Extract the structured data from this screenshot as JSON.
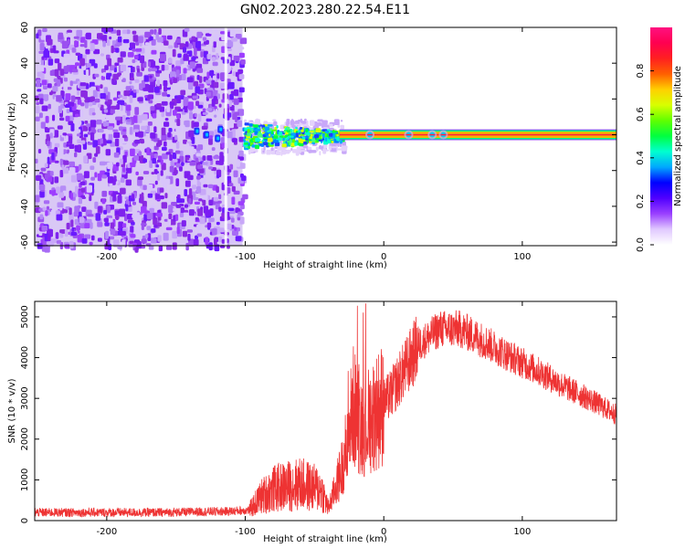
{
  "title": "GN02.2023.280.22.54.E11",
  "chart_data": [
    {
      "type": "heatmap",
      "xlabel": "Height of straight line (km)",
      "ylabel": "Frequency (Hz)",
      "xlim": [
        -252,
        168
      ],
      "ylim": [
        -62,
        60
      ],
      "xticks": [
        -200,
        -100,
        0,
        100
      ],
      "yticks": [
        60,
        40,
        20,
        0,
        -20,
        -40,
        -60
      ],
      "grid": false,
      "noise_region_x": [
        -252,
        -102
      ],
      "signal_band_hz": [
        -2,
        2
      ],
      "colorbar": {
        "label": "Normalized spectral amplitude",
        "range": [
          0,
          1
        ],
        "ticks": [
          "0.0",
          "0.2",
          "0.4",
          "0.6",
          "0.8"
        ],
        "colors": [
          "#ffffff",
          "#e0c8ff",
          "#9a40ff",
          "#5000ff",
          "#0000ff",
          "#00a8ff",
          "#00ffd0",
          "#00ff40",
          "#60ff00",
          "#d8ff00",
          "#ffd000",
          "#ff6000",
          "#ff2020",
          "#ff0050",
          "#ff1080"
        ]
      }
    },
    {
      "type": "line",
      "xlabel": "Height of straight line (km)",
      "ylabel": "SNR (10 * v/v)",
      "xlim": [
        -252,
        168
      ],
      "ylim": [
        0,
        5380
      ],
      "xticks": [
        -200,
        -100,
        0,
        100
      ],
      "yticks": [
        0,
        1000,
        2000,
        3000,
        4000,
        5000
      ],
      "grid": false,
      "color": "#ee3333",
      "envelope": [
        {
          "x": -252,
          "y": 200
        },
        {
          "x": -160,
          "y": 200
        },
        {
          "x": -110,
          "y": 230
        },
        {
          "x": -97,
          "y": 260
        },
        {
          "x": -88,
          "y": 600
        },
        {
          "x": -78,
          "y": 800
        },
        {
          "x": -60,
          "y": 900
        },
        {
          "x": -45,
          "y": 750
        },
        {
          "x": -40,
          "y": 300
        },
        {
          "x": -30,
          "y": 1300
        },
        {
          "x": -22,
          "y": 2800
        },
        {
          "x": -15,
          "y": 2300
        },
        {
          "x": -5,
          "y": 2700
        },
        {
          "x": 5,
          "y": 3100
        },
        {
          "x": 15,
          "y": 3700
        },
        {
          "x": 25,
          "y": 4300
        },
        {
          "x": 40,
          "y": 4700
        },
        {
          "x": 55,
          "y": 4700
        },
        {
          "x": 70,
          "y": 4450
        },
        {
          "x": 90,
          "y": 4050
        },
        {
          "x": 110,
          "y": 3700
        },
        {
          "x": 130,
          "y": 3300
        },
        {
          "x": 150,
          "y": 2950
        },
        {
          "x": 168,
          "y": 2600
        }
      ]
    }
  ]
}
